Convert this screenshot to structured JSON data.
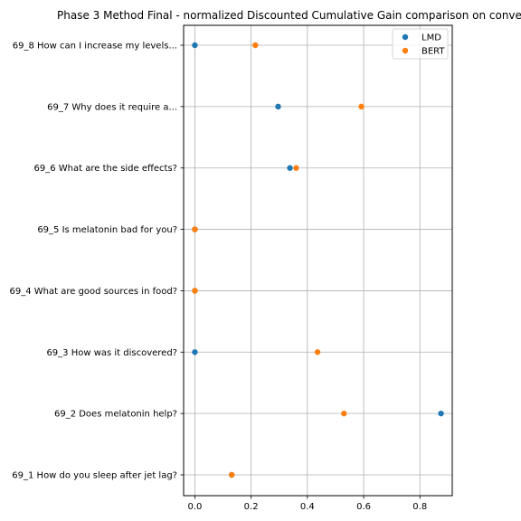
{
  "chart_data": {
    "type": "scatter",
    "title": "Phase 3 Method Final - normalized Discounted Cumulative Gain comparison on conve",
    "xlabel": "",
    "ylabel": "",
    "xlim": [
      -0.04,
      0.915
    ],
    "xticks": [
      0.0,
      0.2,
      0.4,
      0.6,
      0.8
    ],
    "xtick_labels": [
      "0.0",
      "0.2",
      "0.4",
      "0.6",
      "0.8"
    ],
    "grid": true,
    "legend_position": "top-right",
    "categories": [
      "69_8 How can I increase my levels...",
      "69_7 Why does it require a...",
      "69_6 What are the side effects?",
      "69_5 Is melatonin bad for you?",
      "69_4 What are good sources in food?",
      "69_3 How was it discovered?",
      "69_2 Does melatonin help?",
      "69_1 How do you sleep after jet lag?"
    ],
    "series": [
      {
        "name": "LMD",
        "color": "#1f77b4",
        "values": [
          0.0,
          0.296,
          0.338,
          0.0,
          0.0,
          0.0,
          0.875,
          0.131
        ]
      },
      {
        "name": "BERT",
        "color": "#ff7f0e",
        "values": [
          0.215,
          0.592,
          0.36,
          0.0,
          0.0,
          0.436,
          0.53,
          0.131
        ]
      }
    ]
  }
}
